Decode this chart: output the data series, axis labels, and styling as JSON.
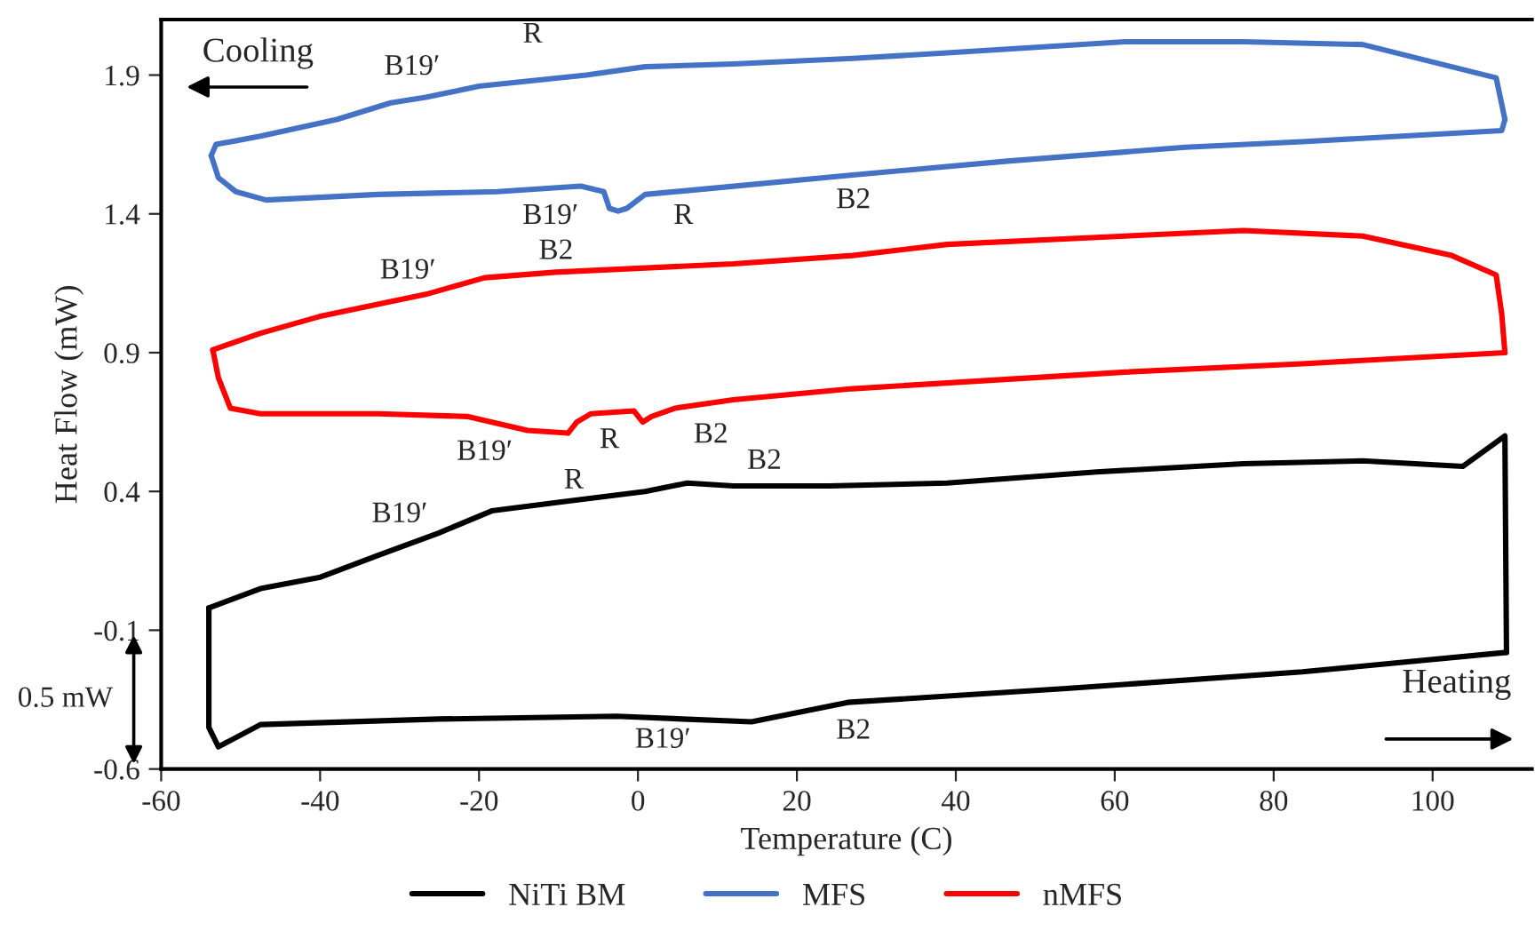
{
  "chart_data": {
    "type": "line",
    "xlabel": "Temperature (C)",
    "ylabel": "Heat Flow (mW)",
    "xlim": [
      -60,
      112.5
    ],
    "xticks": [
      -60,
      -40,
      -20,
      0,
      20,
      40,
      60,
      80,
      100
    ],
    "ylim": [
      -0.6,
      2.1
    ],
    "yticks": [
      -0.6,
      -0.1,
      0.4,
      0.9,
      1.4,
      1.9
    ],
    "grid": false,
    "legend": "bottom",
    "marker": "none",
    "line_style": "solid",
    "series": [
      {
        "name": "NiTi BM",
        "color": "#000000",
        "x": [
          -54.0,
          -54.0,
          -52.8,
          -47.5,
          -25.1,
          -2.7,
          14.3,
          26.4,
          53.9,
          83.6,
          109.3
        ],
        "values": [
          -0.02,
          -0.45,
          -0.52,
          -0.44,
          -0.42,
          -0.41,
          -0.43,
          -0.36,
          -0.31,
          -0.25,
          -0.18
        ]
      },
      {
        "color": "#000000",
        "x": [
          -54.0,
          -47.5,
          -40.1,
          -32.7,
          -25.1,
          -18.4,
          -10.3,
          0.9,
          6.2,
          12.0,
          24.1,
          38.9,
          57.7,
          76.2,
          91.2,
          103.8,
          109.1,
          109.3
        ],
        "values": [
          -0.02,
          0.05,
          0.09,
          0.17,
          0.25,
          0.33,
          0.36,
          0.4,
          0.43,
          0.42,
          0.42,
          0.43,
          0.47,
          0.5,
          0.51,
          0.49,
          0.6,
          -0.18
        ]
      },
      {
        "name": "MFS",
        "color": "#4472c4",
        "x": [
          -53.7,
          -52.8,
          -50.6,
          -46.8,
          -32.7,
          -17.7,
          -7.2,
          -4.3,
          -3.6,
          -2.5,
          -1.4,
          0.9,
          8.5,
          27.0,
          46.5,
          68.9,
          83.6,
          108.7,
          109.1
        ],
        "values": [
          1.61,
          1.53,
          1.48,
          1.45,
          1.47,
          1.48,
          1.5,
          1.48,
          1.42,
          1.41,
          1.42,
          1.47,
          1.49,
          1.54,
          1.59,
          1.64,
          1.66,
          1.7,
          1.74
        ]
      },
      {
        "color": "#4472c4",
        "x": [
          -53.7,
          -53.1,
          -47.5,
          -37.9,
          -31.1,
          -26.7,
          -20.0,
          -6.5,
          0.9,
          12.0,
          27.0,
          38.9,
          61.3,
          76.2,
          91.2,
          102.4,
          108.0,
          109.1
        ],
        "values": [
          1.61,
          1.65,
          1.68,
          1.74,
          1.8,
          1.82,
          1.86,
          1.9,
          1.93,
          1.94,
          1.96,
          1.98,
          2.02,
          2.02,
          2.01,
          1.93,
          1.89,
          1.74
        ]
      },
      {
        "name": "nMFS",
        "color": "#ff0000",
        "x": [
          -53.5,
          -52.8,
          -51.3,
          -47.5,
          -32.7,
          -21.5,
          -13.9,
          -8.8,
          -7.7,
          -5.9,
          -0.5,
          0.6,
          1.7,
          4.7,
          12.0,
          27.0,
          61.3,
          83.6,
          109.1
        ],
        "values": [
          0.91,
          0.81,
          0.7,
          0.68,
          0.68,
          0.67,
          0.62,
          0.61,
          0.65,
          0.68,
          0.69,
          0.65,
          0.67,
          0.7,
          0.73,
          0.77,
          0.83,
          0.86,
          0.9
        ]
      },
      {
        "color": "#ff0000",
        "x": [
          -53.5,
          -47.5,
          -40.1,
          -31.8,
          -26.7,
          -19.3,
          -10.3,
          12.0,
          27.0,
          38.9,
          61.3,
          76.2,
          91.2,
          102.4,
          108.0,
          108.7,
          109.1
        ],
        "values": [
          0.91,
          0.97,
          1.03,
          1.08,
          1.11,
          1.17,
          1.19,
          1.22,
          1.25,
          1.29,
          1.32,
          1.34,
          1.32,
          1.25,
          1.18,
          1.04,
          0.9
        ]
      }
    ],
    "annotations": [
      "Cooling",
      "Heating",
      "0.5 mW",
      "B19′",
      "R",
      "B19′",
      "R",
      "B2",
      "B19′",
      "B2",
      "B19′",
      "R",
      "B2",
      "B2",
      "B19′",
      "R",
      "B19′",
      "B2"
    ]
  }
}
